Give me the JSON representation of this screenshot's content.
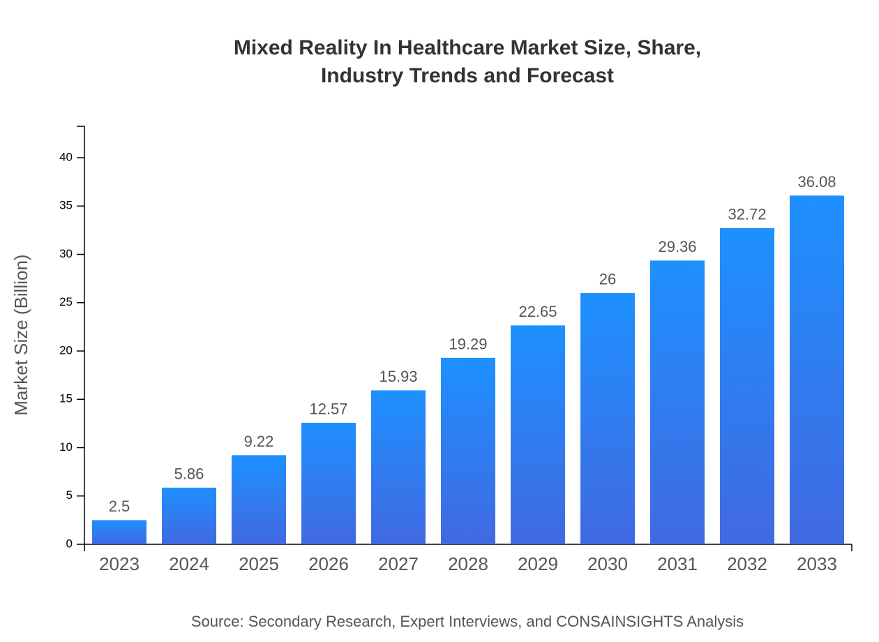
{
  "chart_data": {
    "type": "bar",
    "title": [
      "Mixed Reality In Healthcare Market Size, Share,",
      "Industry Trends and Forecast"
    ],
    "y_label": "Market Size (Billion)",
    "source": "Source: Secondary Research, Expert Interviews, and CONSAINSIGHTS Analysis",
    "categories": [
      "2023",
      "2024",
      "2025",
      "2026",
      "2027",
      "2028",
      "2029",
      "2030",
      "2031",
      "2032",
      "2033"
    ],
    "values": [
      2.5,
      5.86,
      9.22,
      12.57,
      15.93,
      19.29,
      22.65,
      26,
      29.36,
      32.72,
      36.08
    ],
    "gradient": {
      "top": "#1e90ff",
      "bottom": "#4169e1"
    },
    "ylim": [
      0,
      43.25
    ],
    "yticks": [
      0,
      5,
      10,
      15,
      20,
      25,
      30,
      35,
      40
    ],
    "grid": false
  }
}
